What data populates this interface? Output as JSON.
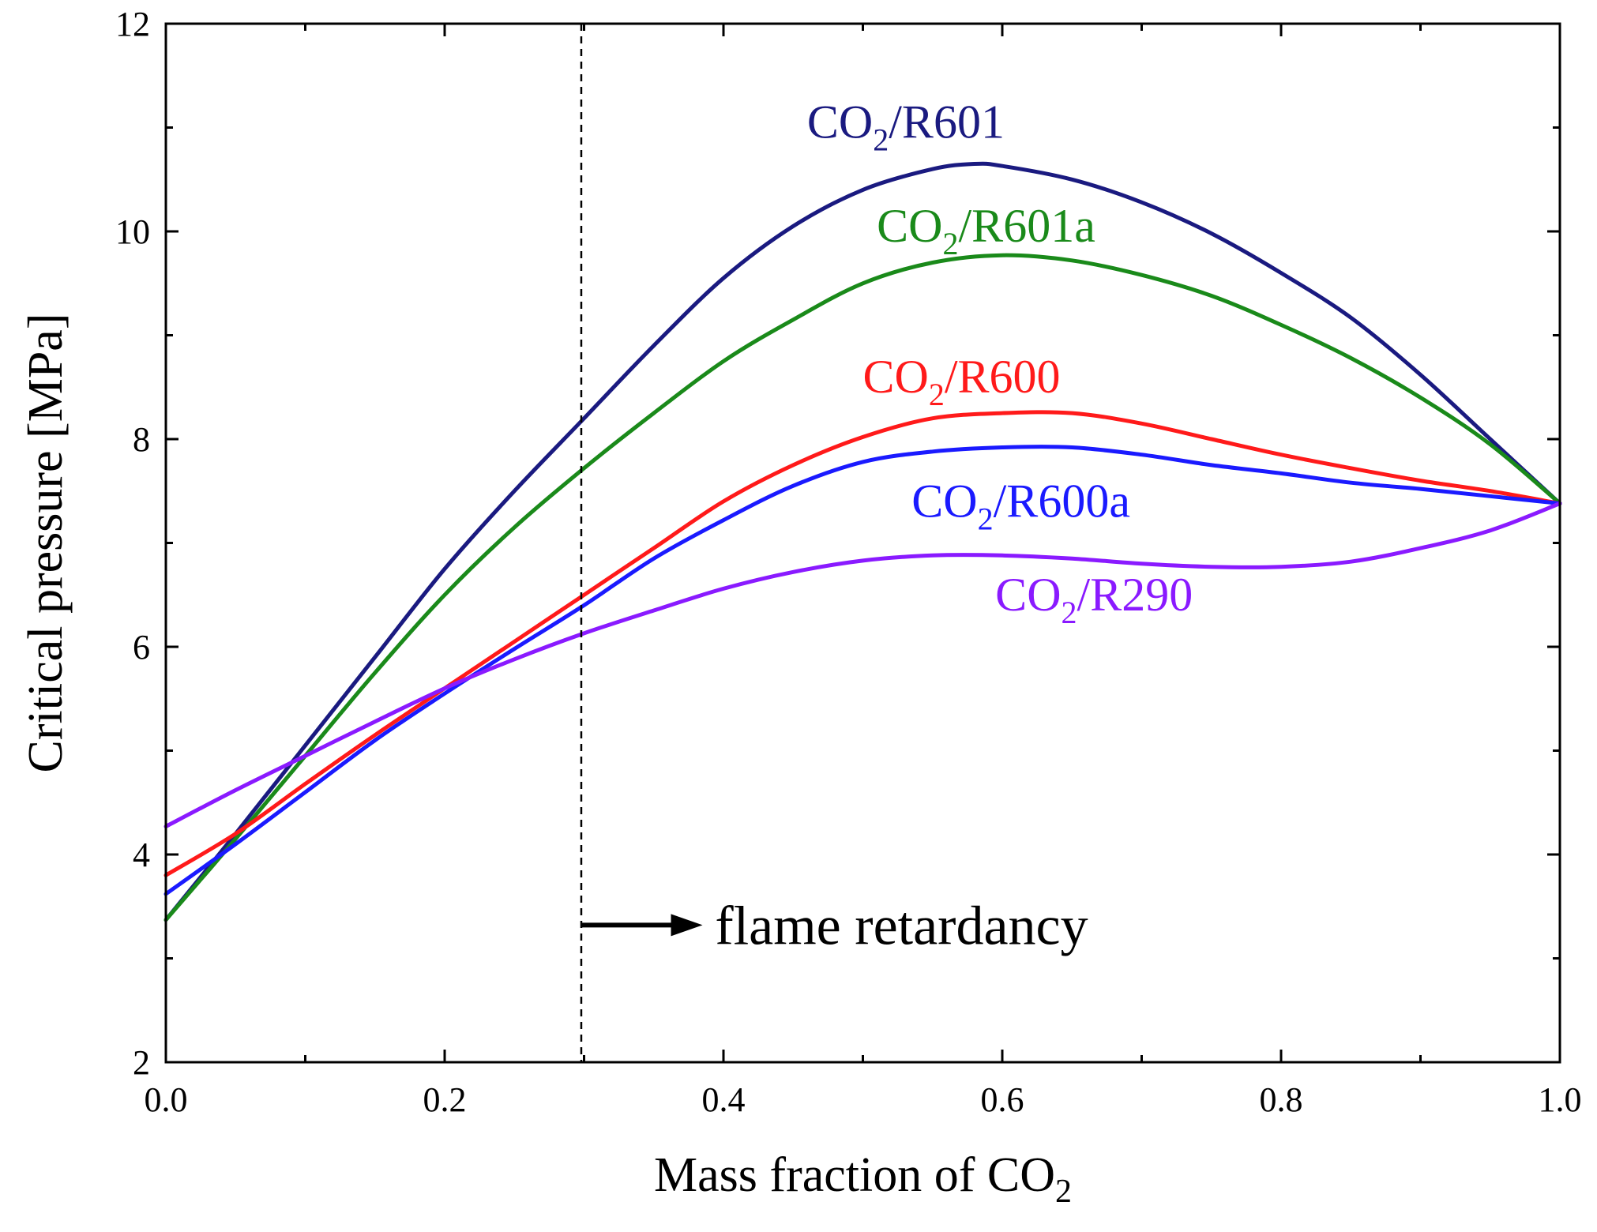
{
  "chart_data": {
    "type": "line",
    "xlabel": "Mass fraction of CO",
    "xlabel_sub": "2",
    "ylabel": "Critical pressure [MPa]",
    "xlim": [
      0.0,
      1.0
    ],
    "ylim": [
      2,
      12
    ],
    "xticks": [
      0.0,
      0.2,
      0.4,
      0.6,
      0.8,
      1.0
    ],
    "xtick_labels": [
      "0.0",
      "0.2",
      "0.4",
      "0.6",
      "0.8",
      "1.0"
    ],
    "yticks": [
      2,
      4,
      6,
      8,
      10,
      12
    ],
    "ytick_labels": [
      "2",
      "4",
      "6",
      "8",
      "10",
      "12"
    ],
    "grid": false,
    "series": [
      {
        "label_main": "CO",
        "label_sub": "2",
        "label_rest": "/R601",
        "color": "#1a1a80",
        "label_pos": [
          0.46,
          10.9
        ],
        "x": [
          0.0,
          0.05,
          0.1,
          0.15,
          0.2,
          0.25,
          0.3,
          0.35,
          0.4,
          0.45,
          0.5,
          0.55,
          0.58,
          0.6,
          0.65,
          0.7,
          0.75,
          0.8,
          0.85,
          0.9,
          0.95,
          1.0
        ],
        "y": [
          3.37,
          4.2,
          5.05,
          5.9,
          6.75,
          7.5,
          8.2,
          8.9,
          9.55,
          10.05,
          10.4,
          10.6,
          10.65,
          10.63,
          10.5,
          10.28,
          9.98,
          9.6,
          9.17,
          8.62,
          8.0,
          7.38
        ]
      },
      {
        "label_main": "CO",
        "label_sub": "2",
        "label_rest": "/R601a",
        "color": "#1a8a1a",
        "label_pos": [
          0.51,
          9.9
        ],
        "x": [
          0.0,
          0.05,
          0.1,
          0.15,
          0.2,
          0.25,
          0.3,
          0.35,
          0.4,
          0.45,
          0.5,
          0.55,
          0.6,
          0.65,
          0.7,
          0.75,
          0.8,
          0.85,
          0.9,
          0.95,
          1.0
        ],
        "y": [
          3.37,
          4.15,
          4.95,
          5.75,
          6.5,
          7.15,
          7.72,
          8.25,
          8.75,
          9.15,
          9.5,
          9.7,
          9.77,
          9.72,
          9.58,
          9.38,
          9.1,
          8.78,
          8.4,
          7.95,
          7.38
        ]
      },
      {
        "label_main": "CO",
        "label_sub": "2",
        "label_rest": "/R600",
        "color": "#ff1a1a",
        "label_pos": [
          0.5,
          8.45
        ],
        "x": [
          0.0,
          0.05,
          0.1,
          0.15,
          0.2,
          0.25,
          0.3,
          0.35,
          0.4,
          0.45,
          0.5,
          0.55,
          0.6,
          0.65,
          0.7,
          0.75,
          0.8,
          0.85,
          0.9,
          0.95,
          1.0
        ],
        "y": [
          3.8,
          4.2,
          4.68,
          5.15,
          5.6,
          6.05,
          6.5,
          6.95,
          7.4,
          7.75,
          8.02,
          8.2,
          8.25,
          8.25,
          8.15,
          8.0,
          7.85,
          7.72,
          7.6,
          7.5,
          7.38
        ]
      },
      {
        "label_main": "CO",
        "label_sub": "2",
        "label_rest": "/R600a",
        "color": "#1a1aff",
        "label_pos": [
          0.535,
          7.25
        ],
        "x": [
          0.0,
          0.05,
          0.1,
          0.15,
          0.2,
          0.25,
          0.3,
          0.35,
          0.4,
          0.45,
          0.5,
          0.55,
          0.6,
          0.65,
          0.7,
          0.75,
          0.8,
          0.85,
          0.9,
          0.95,
          1.0
        ],
        "y": [
          3.62,
          4.1,
          4.6,
          5.1,
          5.55,
          5.98,
          6.4,
          6.85,
          7.22,
          7.55,
          7.78,
          7.88,
          7.92,
          7.92,
          7.85,
          7.75,
          7.67,
          7.58,
          7.52,
          7.45,
          7.38
        ]
      },
      {
        "label_main": "CO",
        "label_sub": "2",
        "label_rest": "/R290",
        "color": "#8a1aff",
        "label_pos": [
          0.595,
          6.35
        ],
        "x": [
          0.0,
          0.05,
          0.1,
          0.15,
          0.2,
          0.25,
          0.3,
          0.35,
          0.4,
          0.45,
          0.5,
          0.55,
          0.6,
          0.65,
          0.7,
          0.75,
          0.8,
          0.85,
          0.9,
          0.95,
          1.0
        ],
        "y": [
          4.27,
          4.62,
          4.95,
          5.28,
          5.6,
          5.88,
          6.13,
          6.35,
          6.56,
          6.72,
          6.83,
          6.88,
          6.88,
          6.85,
          6.8,
          6.77,
          6.77,
          6.82,
          6.95,
          7.12,
          7.38
        ]
      }
    ],
    "annotation": {
      "text": "flame retardancy",
      "vline_x": 0.298,
      "arrow_from_x": 0.298,
      "arrow_to_x": 0.385,
      "arrow_y": 3.32,
      "text_x": 0.394,
      "text_y": 3.32
    }
  }
}
